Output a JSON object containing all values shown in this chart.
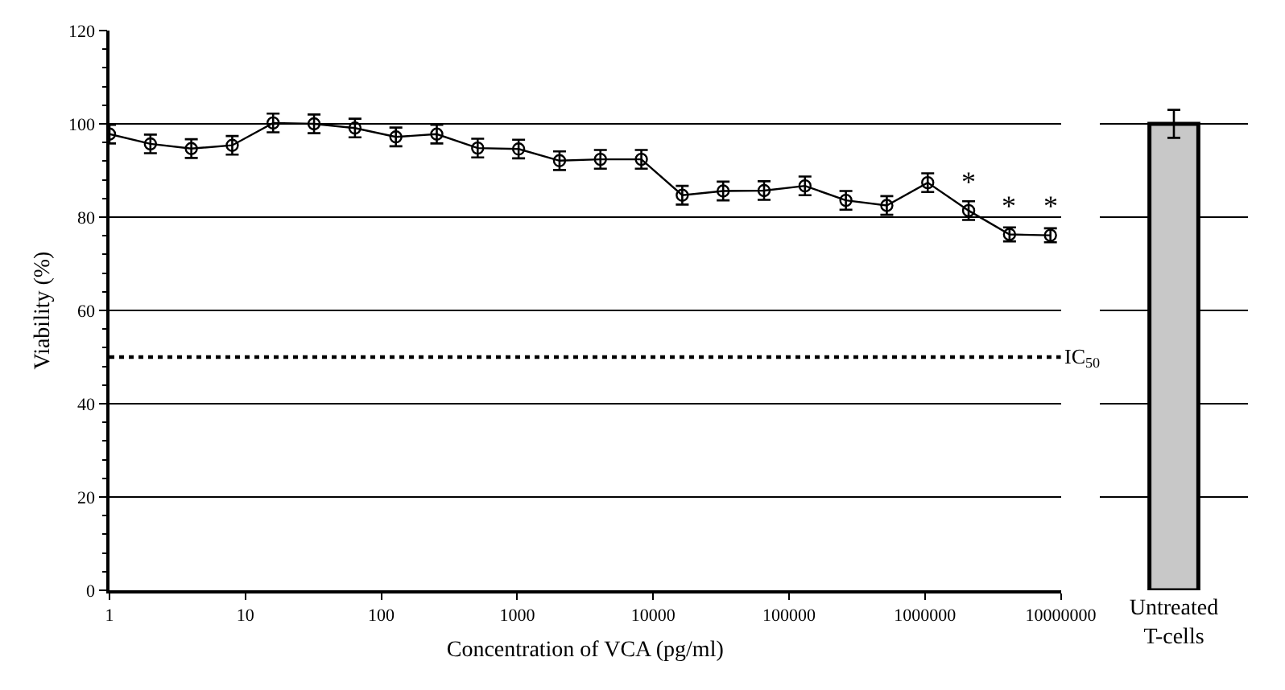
{
  "chart_data": [
    {
      "type": "line",
      "xlabel": "Concentration of VCA (pg/ml)",
      "ylabel": "Viability (%)",
      "x": [
        1,
        2,
        4,
        8,
        16,
        32,
        64,
        128,
        256,
        512,
        1024,
        2048,
        4096,
        8192,
        16384,
        32768,
        65536,
        131072,
        262144,
        524288,
        1048576,
        2097152,
        4194304,
        8388608
      ],
      "series": [
        {
          "color": "#000000",
          "values": [
            97.8,
            95.7,
            94.7,
            95.4,
            100.2,
            100,
            99.1,
            97.2,
            97.8,
            94.8,
            94.6,
            92.1,
            92.4,
            92.4,
            84.7,
            85.6,
            85.7,
            86.7,
            83.6,
            82.5,
            87.4,
            81.4,
            76.3,
            76.1
          ],
          "errors": [
            2,
            2,
            2,
            2,
            2,
            2,
            2,
            2,
            2,
            2,
            2,
            2,
            2,
            2,
            2,
            2,
            2,
            2,
            2,
            2,
            2,
            2,
            1.5,
            1.5
          ]
        }
      ],
      "xlim": [
        1,
        10000000
      ],
      "ylim": [
        0,
        120
      ],
      "xticks": [
        1,
        10,
        100,
        1000,
        10000,
        100000,
        1000000,
        10000000
      ],
      "yticks": [
        0,
        20,
        40,
        60,
        80,
        100,
        120
      ],
      "log": "x",
      "grid": "y",
      "marker": "circle",
      "line_style": "solid",
      "ref_lines": [
        {
          "axis": "y",
          "value": 50,
          "label": "IC$_{50}$",
          "line_style": "dotted",
          "color": "#000000"
        }
      ],
      "annotations": [
        {
          "text": "*",
          "x": 2097152,
          "y": 81.4
        },
        {
          "text": "*",
          "x": 4194304,
          "y": 76.3
        },
        {
          "text": "*",
          "x": 8388608,
          "y": 76.1
        }
      ]
    },
    {
      "type": "bar",
      "categories": [
        "Untreated\nT-cells"
      ],
      "values": [
        100
      ],
      "errors": [
        [
          97,
          103
        ]
      ],
      "colors": [
        "#c8c8c8"
      ],
      "ylim": [
        0,
        120
      ],
      "yticks": [
        0,
        20,
        40,
        60,
        80,
        100,
        120
      ],
      "grid": "y",
      "tick_labels": "x"
    }
  ]
}
